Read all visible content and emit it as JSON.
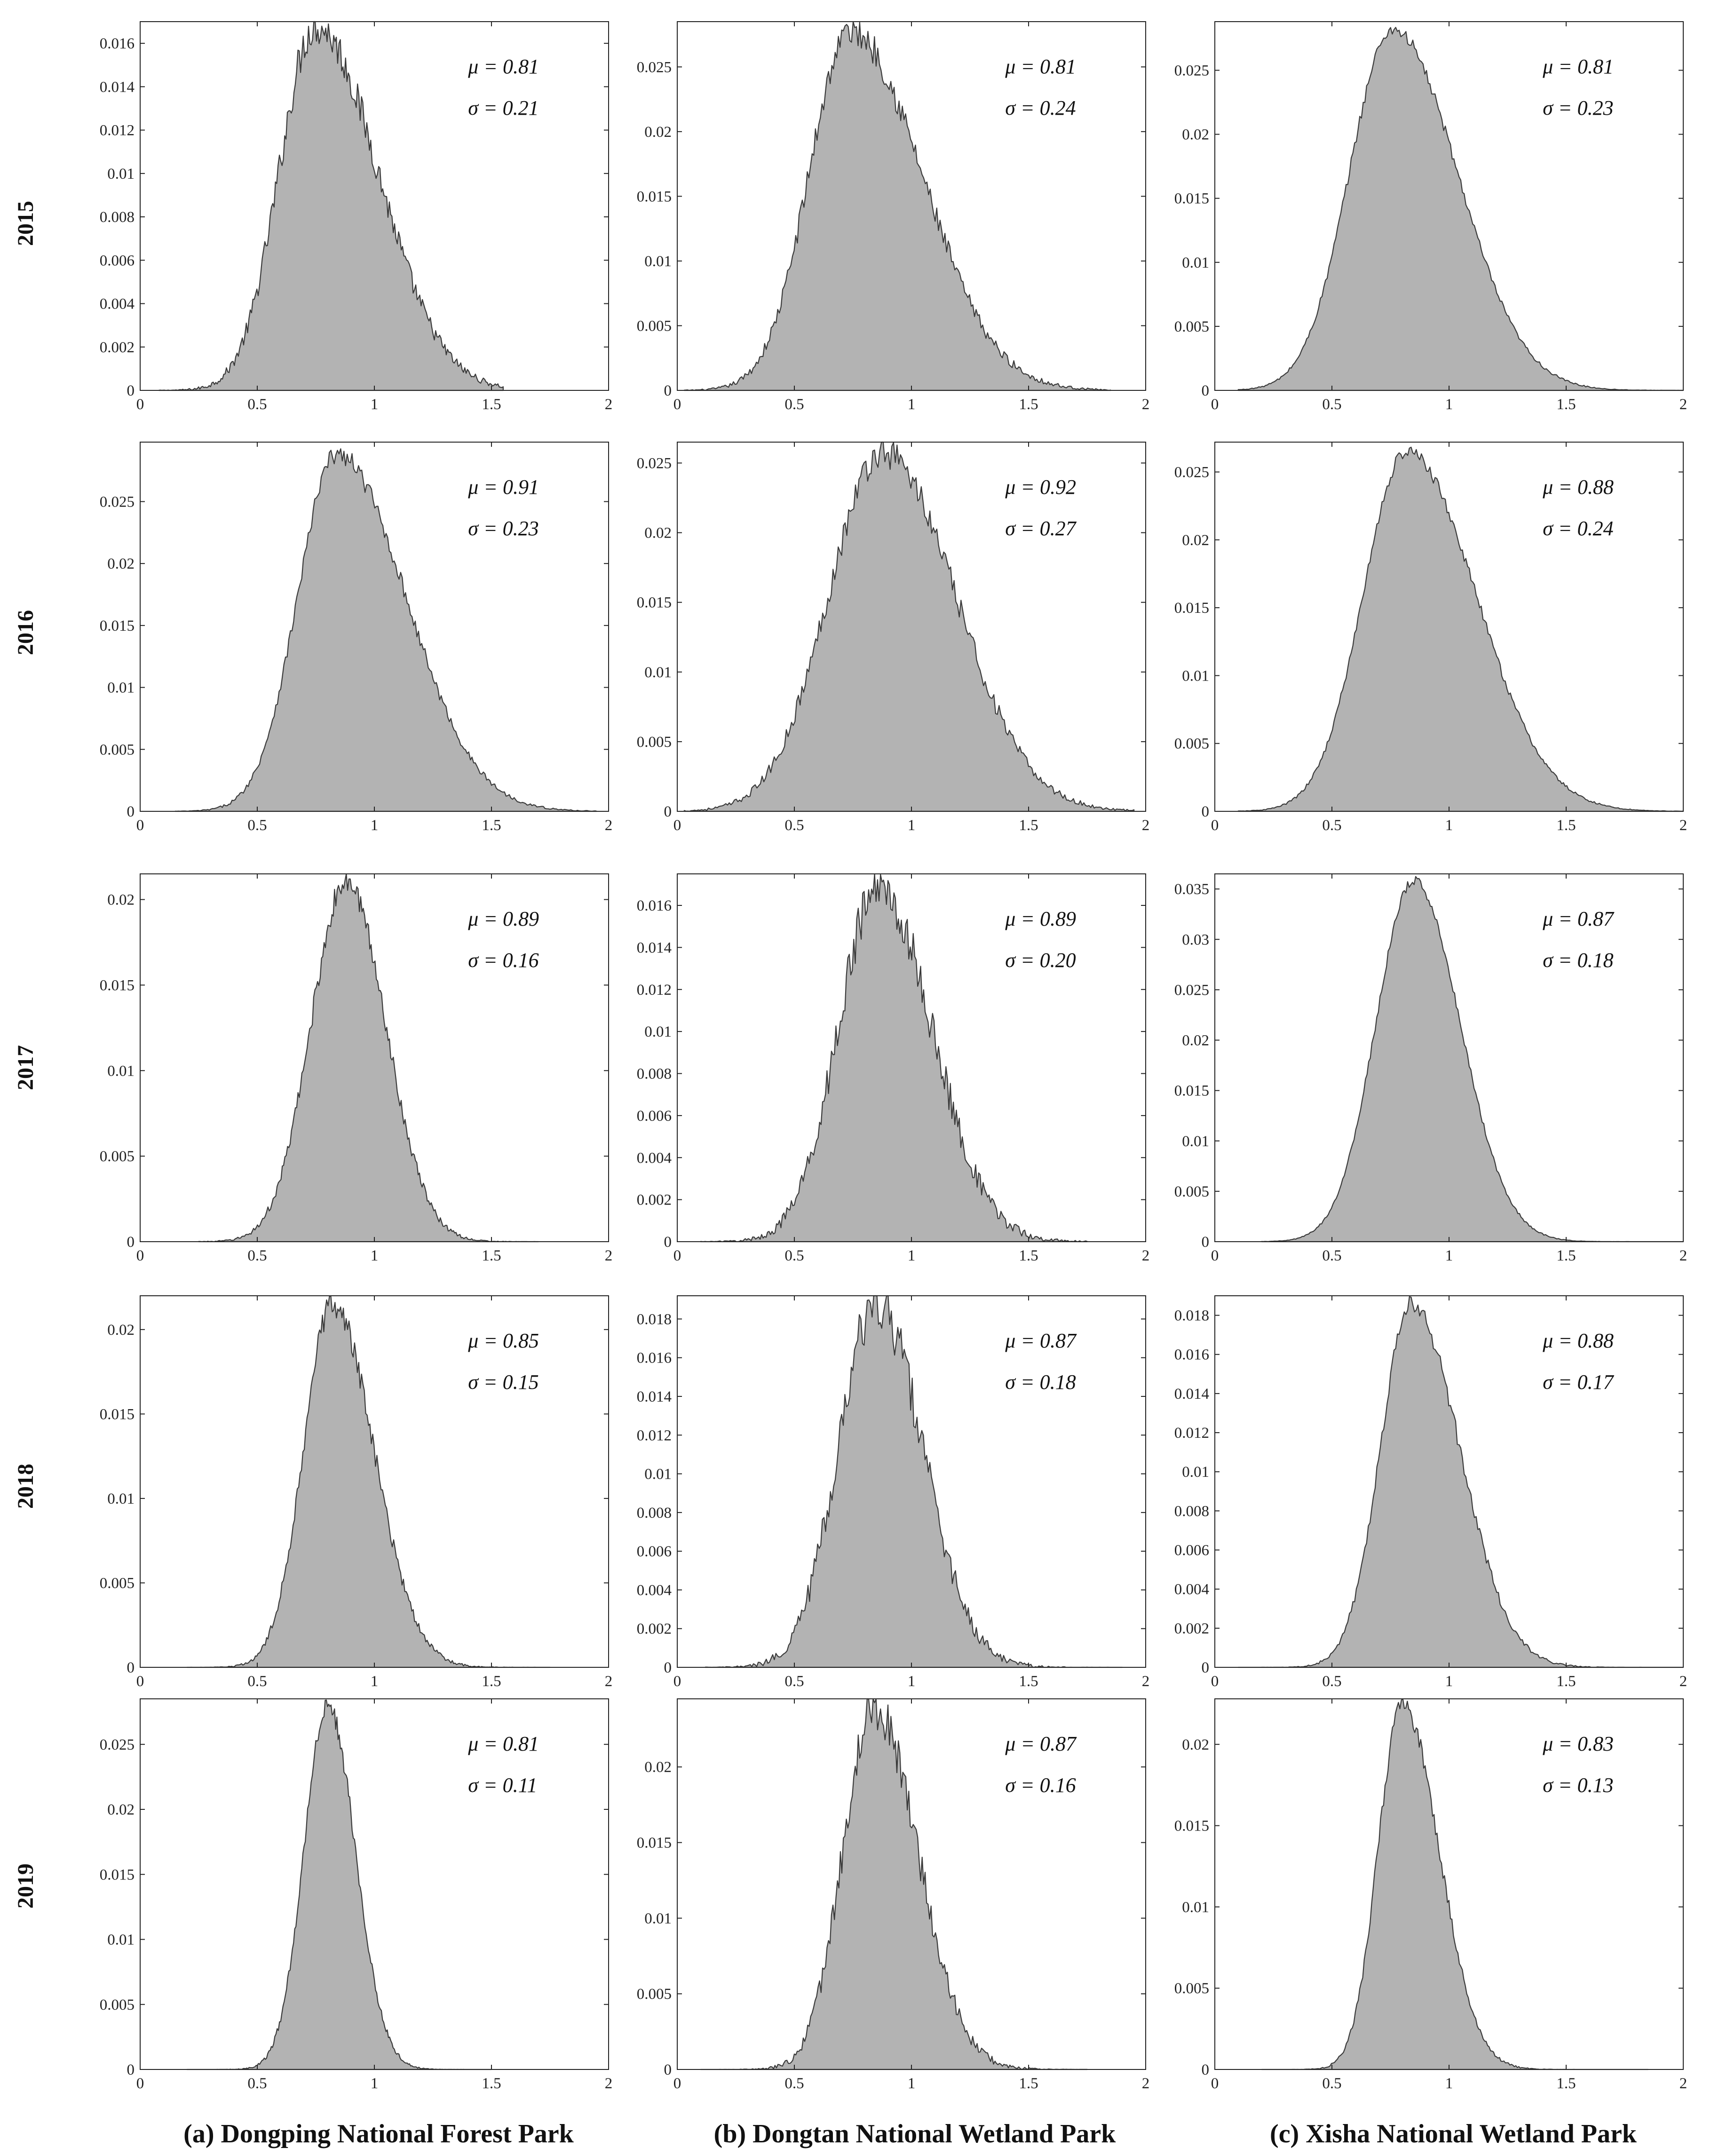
{
  "figure": {
    "columns": [
      {
        "title": "(a) Dongping National Forest Park"
      },
      {
        "title": "(b) Dongtan National Wetland Park"
      },
      {
        "title": "(c) Xisha National Wetland Park"
      }
    ],
    "rows": [
      {
        "year": "2015"
      },
      {
        "year": "2016"
      },
      {
        "year": "2017"
      },
      {
        "year": "2018"
      },
      {
        "year": "2019"
      }
    ]
  },
  "chart_data": [
    {
      "type": "area",
      "row": 0,
      "col": 0,
      "xlim": [
        0,
        2
      ],
      "x_ticks": [
        "0",
        "0.5",
        "1",
        "1.5",
        "2"
      ],
      "ylim": [
        0,
        0.017
      ],
      "y_ticks": [
        "0",
        "0.002",
        "0.004",
        "0.006",
        "0.008",
        "0.01",
        "0.012",
        "0.014",
        "0.016"
      ],
      "y_tick_values": [
        0,
        0.002,
        0.004,
        0.006,
        0.008,
        0.01,
        0.012,
        0.014,
        0.016
      ],
      "mu_label": "μ = 0.81",
      "sigma_label": "σ = 0.21",
      "mean": 0.81,
      "sd": 0.21,
      "peak_x": 0.75,
      "peak": 0.0168,
      "x_start": 0.08,
      "x_end": 1.55,
      "noise": 0.6,
      "color": "#b3b3b3"
    },
    {
      "type": "area",
      "row": 0,
      "col": 1,
      "xlim": [
        0,
        2
      ],
      "x_ticks": [
        "0",
        "0.5",
        "1",
        "1.5",
        "2"
      ],
      "ylim": [
        0,
        0.0285
      ],
      "y_ticks": [
        "0",
        "0.005",
        "0.01",
        "0.015",
        "0.02",
        "0.025"
      ],
      "y_tick_values": [
        0,
        0.005,
        0.01,
        0.015,
        0.02,
        0.025
      ],
      "mu_label": "μ = 0.81",
      "sigma_label": "σ = 0.24",
      "mean": 0.81,
      "sd": 0.24,
      "peak_x": 0.74,
      "peak": 0.0278,
      "x_start": 0.03,
      "x_end": 1.85,
      "noise": 0.5,
      "color": "#b3b3b3"
    },
    {
      "type": "area",
      "row": 0,
      "col": 2,
      "xlim": [
        0,
        2
      ],
      "x_ticks": [
        "0",
        "0.5",
        "1",
        "1.5",
        "2"
      ],
      "ylim": [
        0,
        0.0288
      ],
      "y_ticks": [
        "0",
        "0.005",
        "0.01",
        "0.015",
        "0.02",
        "0.025"
      ],
      "y_tick_values": [
        0,
        0.005,
        0.01,
        0.015,
        0.02,
        0.025
      ],
      "mu_label": "μ = 0.81",
      "sigma_label": "σ = 0.23",
      "mean": 0.81,
      "sd": 0.23,
      "peak_x": 0.76,
      "peak": 0.0282,
      "x_start": 0.1,
      "x_end": 2.0,
      "noise": 0.2,
      "color": "#b3b3b3"
    },
    {
      "type": "area",
      "row": 1,
      "col": 0,
      "xlim": [
        0,
        2
      ],
      "x_ticks": [
        "0",
        "0.5",
        "1",
        "1.5",
        "2"
      ],
      "ylim": [
        0,
        0.0298
      ],
      "y_ticks": [
        "0",
        "0.005",
        "0.01",
        "0.015",
        "0.02",
        "0.025"
      ],
      "y_tick_values": [
        0,
        0.005,
        0.01,
        0.015,
        0.02,
        0.025
      ],
      "mu_label": "μ = 0.91",
      "sigma_label": "σ = 0.23",
      "mean": 0.91,
      "sd": 0.23,
      "peak_x": 0.84,
      "peak": 0.0288,
      "x_start": 0.15,
      "x_end": 1.95,
      "noise": 0.3,
      "color": "#b3b3b3"
    },
    {
      "type": "area",
      "row": 1,
      "col": 1,
      "xlim": [
        0,
        2
      ],
      "x_ticks": [
        "0",
        "0.5",
        "1",
        "1.5",
        "2"
      ],
      "ylim": [
        0,
        0.0265
      ],
      "y_ticks": [
        "0",
        "0.005",
        "0.01",
        "0.015",
        "0.02",
        "0.025"
      ],
      "y_tick_values": [
        0,
        0.005,
        0.01,
        0.015,
        0.02,
        0.025
      ],
      "mu_label": "μ = 0.92",
      "sigma_label": "σ = 0.27",
      "mean": 0.92,
      "sd": 0.27,
      "peak_x": 0.88,
      "peak": 0.0258,
      "x_start": 0.03,
      "x_end": 1.95,
      "noise": 0.5,
      "color": "#b3b3b3"
    },
    {
      "type": "area",
      "row": 1,
      "col": 2,
      "xlim": [
        0,
        2
      ],
      "x_ticks": [
        "0",
        "0.5",
        "1",
        "1.5",
        "2"
      ],
      "ylim": [
        0,
        0.0272
      ],
      "y_ticks": [
        "0",
        "0.005",
        "0.01",
        "0.015",
        "0.02",
        "0.025"
      ],
      "y_tick_values": [
        0,
        0.005,
        0.01,
        0.015,
        0.02,
        0.025
      ],
      "mu_label": "μ = 0.88",
      "sigma_label": "σ = 0.24",
      "mean": 0.88,
      "sd": 0.24,
      "peak_x": 0.82,
      "peak": 0.0265,
      "x_start": 0.1,
      "x_end": 2.0,
      "noise": 0.2,
      "color": "#b3b3b3"
    },
    {
      "type": "area",
      "row": 2,
      "col": 0,
      "xlim": [
        0,
        2
      ],
      "x_ticks": [
        "0",
        "0.5",
        "1",
        "1.5",
        "2"
      ],
      "ylim": [
        0,
        0.0215
      ],
      "y_ticks": [
        "0",
        "0.005",
        "0.01",
        "0.015",
        "0.02"
      ],
      "y_tick_values": [
        0,
        0.005,
        0.01,
        0.015,
        0.02
      ],
      "mu_label": "μ = 0.89",
      "sigma_label": "σ = 0.16",
      "mean": 0.89,
      "sd": 0.16,
      "peak_x": 0.88,
      "peak": 0.021,
      "x_start": 0.25,
      "x_end": 1.7,
      "noise": 0.4,
      "color": "#b3b3b3"
    },
    {
      "type": "area",
      "row": 2,
      "col": 1,
      "xlim": [
        0,
        2
      ],
      "x_ticks": [
        "0",
        "0.5",
        "1",
        "1.5",
        "2"
      ],
      "ylim": [
        0,
        0.0175
      ],
      "y_ticks": [
        "0",
        "0.002",
        "0.004",
        "0.006",
        "0.008",
        "0.01",
        "0.012",
        "0.014",
        "0.016"
      ],
      "y_tick_values": [
        0,
        0.002,
        0.004,
        0.006,
        0.008,
        0.01,
        0.012,
        0.014,
        0.016
      ],
      "mu_label": "μ = 0.89",
      "sigma_label": "σ = 0.20",
      "mean": 0.89,
      "sd": 0.2,
      "peak_x": 0.86,
      "peak": 0.0168,
      "x_start": 0.1,
      "x_end": 1.75,
      "noise": 0.8,
      "color": "#b3b3b3"
    },
    {
      "type": "area",
      "row": 2,
      "col": 2,
      "xlim": [
        0,
        2
      ],
      "x_ticks": [
        "0",
        "0.5",
        "1",
        "1.5",
        "2"
      ],
      "ylim": [
        0,
        0.0365
      ],
      "y_ticks": [
        "0",
        "0.005",
        "0.01",
        "0.015",
        "0.02",
        "0.025",
        "0.03",
        "0.035"
      ],
      "y_tick_values": [
        0,
        0.005,
        0.01,
        0.015,
        0.02,
        0.025,
        0.03,
        0.035
      ],
      "mu_label": "μ = 0.87",
      "sigma_label": "σ = 0.18",
      "mean": 0.87,
      "sd": 0.18,
      "peak_x": 0.85,
      "peak": 0.0358,
      "x_start": 0.2,
      "x_end": 2.0,
      "noise": 0.15,
      "color": "#b3b3b3"
    },
    {
      "type": "area",
      "row": 3,
      "col": 0,
      "xlim": [
        0,
        2
      ],
      "x_ticks": [
        "0",
        "0.5",
        "1",
        "1.5",
        "2"
      ],
      "ylim": [
        0,
        0.022
      ],
      "y_ticks": [
        "0",
        "0.005",
        "0.01",
        "0.015",
        "0.02"
      ],
      "y_tick_values": [
        0,
        0.005,
        0.01,
        0.015,
        0.02
      ],
      "mu_label": "μ = 0.85",
      "sigma_label": "σ = 0.15",
      "mean": 0.85,
      "sd": 0.15,
      "peak_x": 0.82,
      "peak": 0.0215,
      "x_start": 0.2,
      "x_end": 1.75,
      "noise": 0.4,
      "color": "#b3b3b3"
    },
    {
      "type": "area",
      "row": 3,
      "col": 1,
      "xlim": [
        0,
        2
      ],
      "x_ticks": [
        "0",
        "0.5",
        "1",
        "1.5",
        "2"
      ],
      "ylim": [
        0,
        0.0192
      ],
      "y_ticks": [
        "0",
        "0.002",
        "0.004",
        "0.006",
        "0.008",
        "0.01",
        "0.012",
        "0.014",
        "0.016",
        "0.018"
      ],
      "y_tick_values": [
        0,
        0.002,
        0.004,
        0.006,
        0.008,
        0.01,
        0.012,
        0.014,
        0.016,
        0.018
      ],
      "mu_label": "μ = 0.87",
      "sigma_label": "σ = 0.18",
      "mean": 0.87,
      "sd": 0.18,
      "peak_x": 0.85,
      "peak": 0.0188,
      "x_start": 0.12,
      "x_end": 1.9,
      "noise": 0.8,
      "color": "#b3b3b3"
    },
    {
      "type": "area",
      "row": 3,
      "col": 2,
      "xlim": [
        0,
        2
      ],
      "x_ticks": [
        "0",
        "0.5",
        "1",
        "1.5",
        "2"
      ],
      "ylim": [
        0,
        0.019
      ],
      "y_ticks": [
        "0",
        "0.002",
        "0.004",
        "0.006",
        "0.008",
        "0.01",
        "0.012",
        "0.014",
        "0.016",
        "0.018"
      ],
      "y_tick_values": [
        0,
        0.002,
        0.004,
        0.006,
        0.008,
        0.01,
        0.012,
        0.014,
        0.016,
        0.018
      ],
      "mu_label": "μ = 0.88",
      "sigma_label": "σ = 0.17",
      "mean": 0.88,
      "sd": 0.17,
      "peak_x": 0.84,
      "peak": 0.0185,
      "x_start": 0.1,
      "x_end": 2.0,
      "noise": 0.3,
      "color": "#b3b3b3"
    },
    {
      "type": "area",
      "row": 4,
      "col": 0,
      "xlim": [
        0,
        2
      ],
      "x_ticks": [
        "0",
        "0.5",
        "1",
        "1.5",
        "2"
      ],
      "ylim": [
        0,
        0.0285
      ],
      "y_ticks": [
        "0",
        "0.005",
        "0.01",
        "0.015",
        "0.02",
        "0.025"
      ],
      "y_tick_values": [
        0,
        0.005,
        0.01,
        0.015,
        0.02,
        0.025
      ],
      "mu_label": "μ = 0.81",
      "sigma_label": "σ = 0.11",
      "mean": 0.81,
      "sd": 0.11,
      "peak_x": 0.8,
      "peak": 0.028,
      "x_start": 0.2,
      "x_end": 1.5,
      "noise": 0.3,
      "color": "#b3b3b3"
    },
    {
      "type": "area",
      "row": 4,
      "col": 1,
      "xlim": [
        0,
        2
      ],
      "x_ticks": [
        "0",
        "0.5",
        "1",
        "1.5",
        "2"
      ],
      "ylim": [
        0,
        0.0245
      ],
      "y_ticks": [
        "0",
        "0.005",
        "0.01",
        "0.015",
        "0.02"
      ],
      "y_tick_values": [
        0,
        0.005,
        0.01,
        0.015,
        0.02
      ],
      "mu_label": "μ = 0.87",
      "sigma_label": "σ = 0.16",
      "mean": 0.87,
      "sd": 0.16,
      "peak_x": 0.84,
      "peak": 0.024,
      "x_start": 0.1,
      "x_end": 1.75,
      "noise": 0.7,
      "color": "#b3b3b3"
    },
    {
      "type": "area",
      "row": 4,
      "col": 2,
      "xlim": [
        0,
        2
      ],
      "x_ticks": [
        "0",
        "0.5",
        "1",
        "1.5",
        "2"
      ],
      "ylim": [
        0,
        0.0228
      ],
      "y_ticks": [
        "0",
        "0.005",
        "0.01",
        "0.015",
        "0.02"
      ],
      "y_tick_values": [
        0,
        0.005,
        0.01,
        0.015,
        0.02
      ],
      "mu_label": "μ = 0.83",
      "sigma_label": "σ = 0.13",
      "mean": 0.83,
      "sd": 0.13,
      "peak_x": 0.8,
      "peak": 0.0225,
      "x_start": 0.2,
      "x_end": 1.85,
      "noise": 0.3,
      "color": "#b3b3b3"
    }
  ]
}
